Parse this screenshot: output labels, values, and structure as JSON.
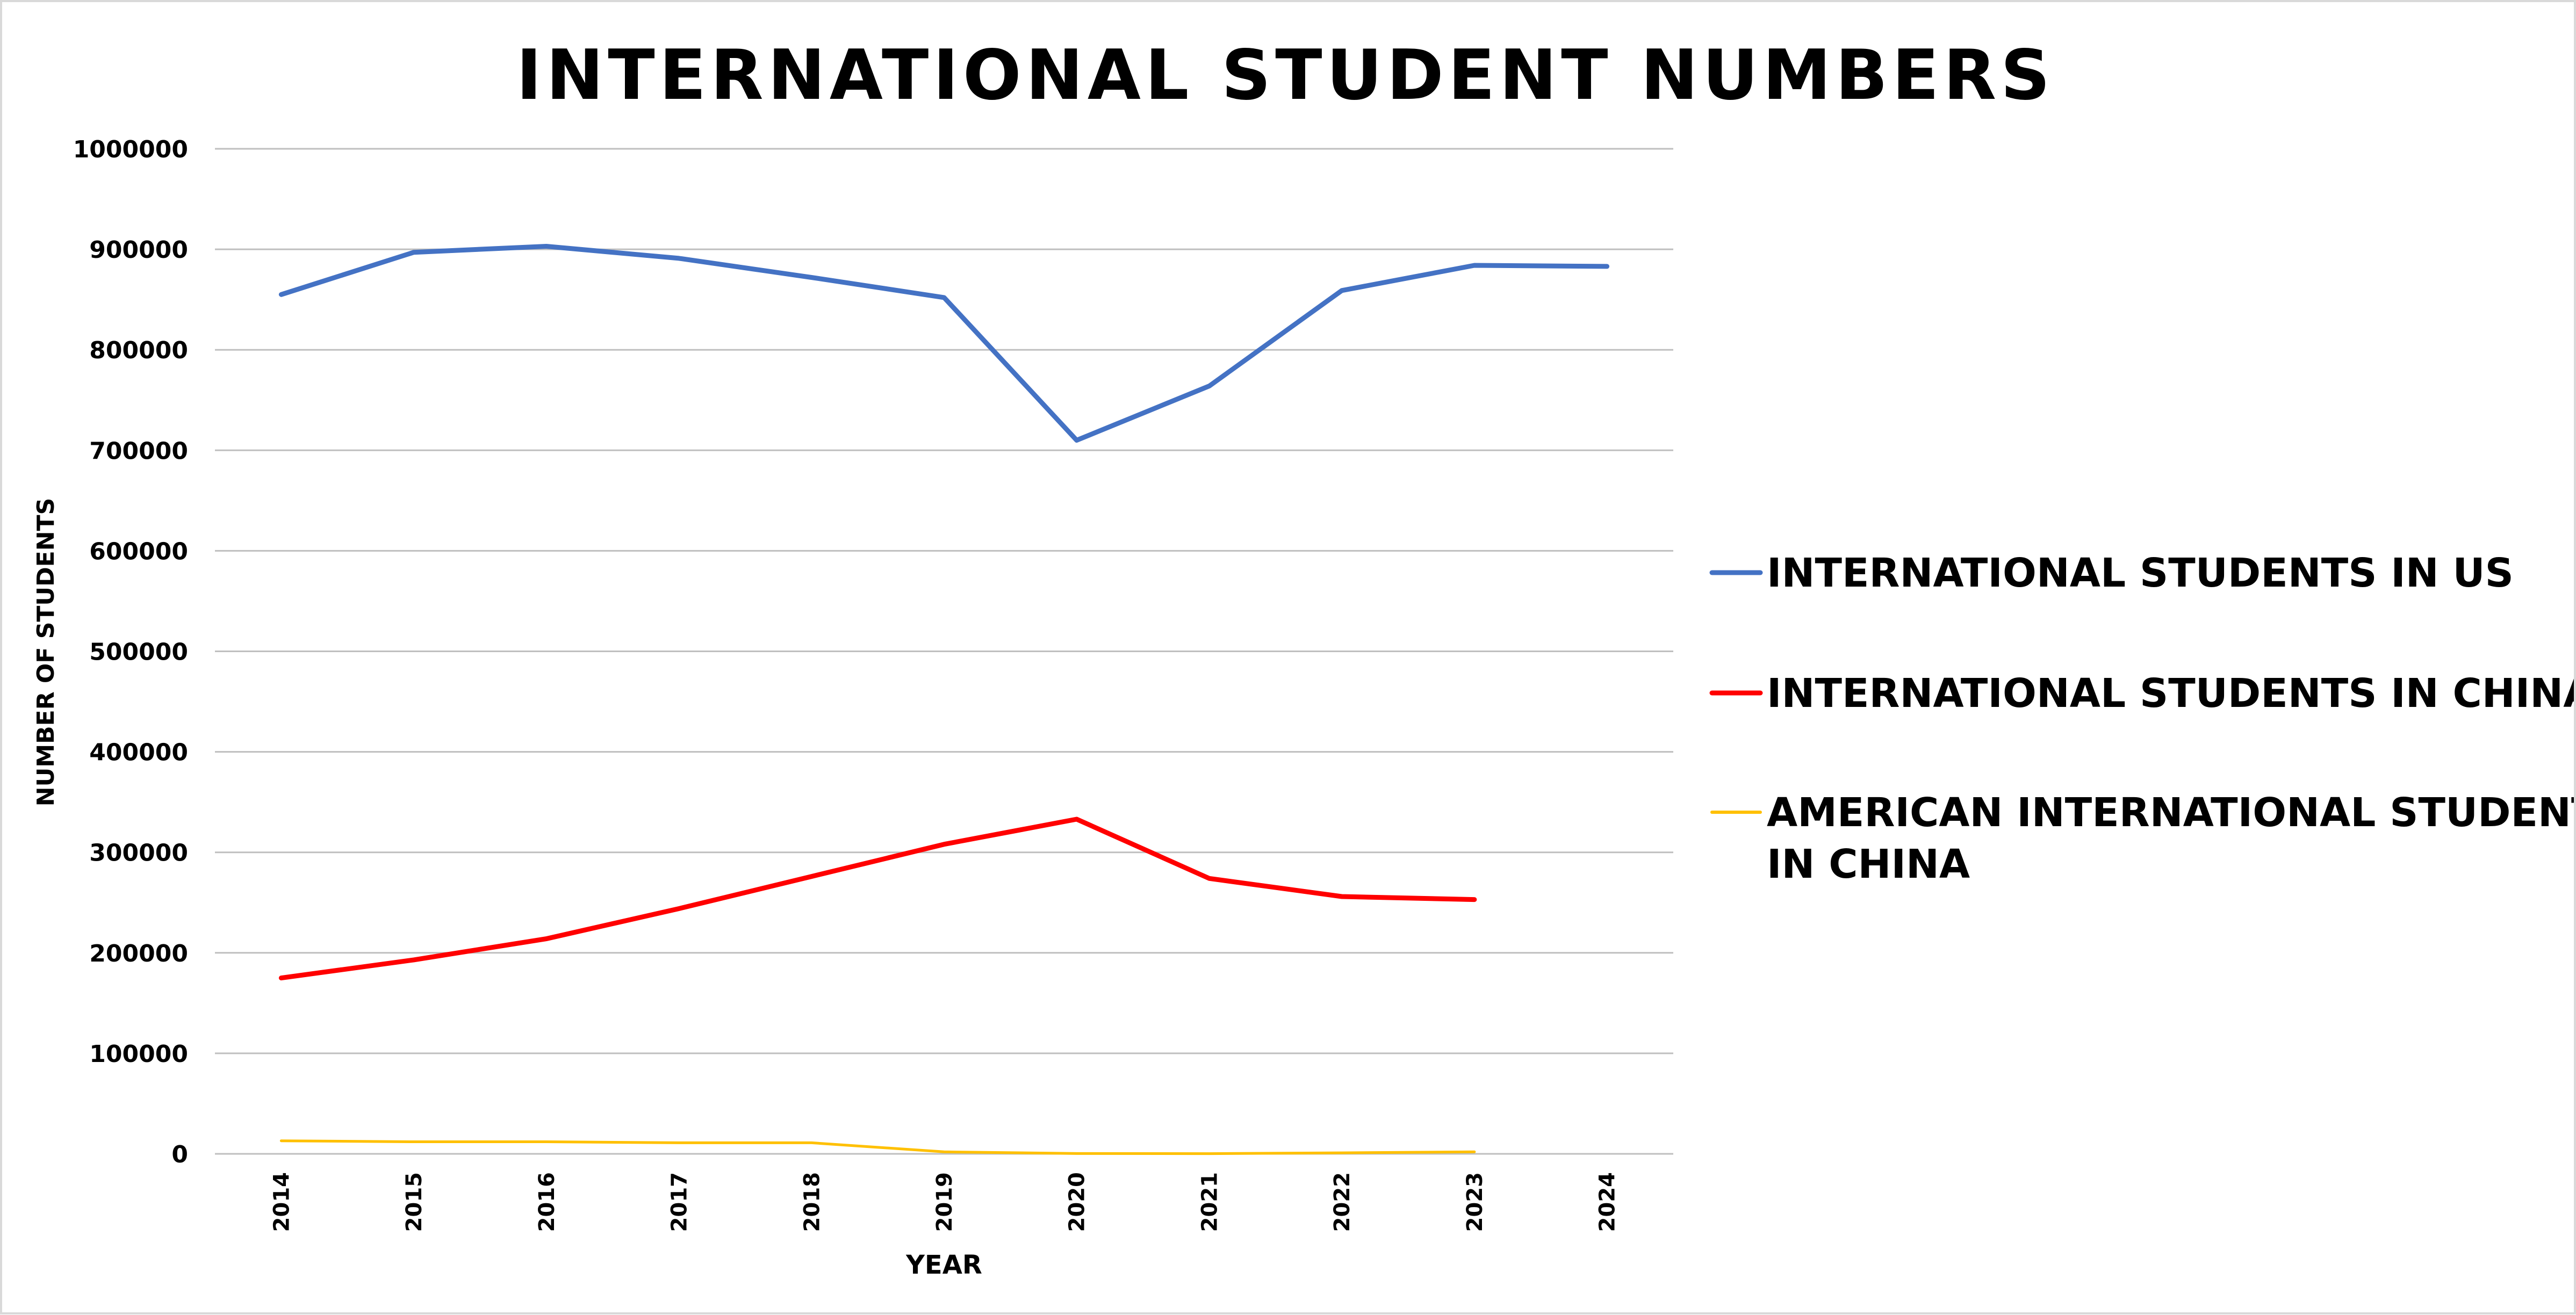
{
  "chart_data": {
    "type": "line",
    "title": "INTERNATIONAL STUDENT NUMBERS",
    "xlabel": "YEAR",
    "ylabel": "NUMBER OF STUDENTS",
    "ylim": [
      0,
      1000000
    ],
    "y_ticks": [
      "0",
      "100000",
      "200000",
      "300000",
      "400000",
      "500000",
      "600000",
      "700000",
      "800000",
      "900000",
      "1000000"
    ],
    "categories": [
      "2014",
      "2015",
      "2016",
      "2017",
      "2018",
      "2019",
      "2020",
      "2021",
      "2022",
      "2023",
      "2024"
    ],
    "grid": true,
    "legend_position": "right",
    "series": [
      {
        "name": "INTERNATIONAL STUDENTS IN US",
        "color": "#4472C4",
        "values": [
          855000,
          897000,
          903000,
          891000,
          872000,
          852000,
          710000,
          764000,
          859000,
          884000,
          883000
        ]
      },
      {
        "name": "INTERNATIONAL STUDENTS IN CHINA",
        "color": "#FF0000",
        "values": [
          175000,
          193000,
          214000,
          244000,
          276000,
          308000,
          333000,
          274000,
          256000,
          253000,
          null
        ]
      },
      {
        "name": "AMERICAN INTERNATIONAL STUDENTS IN CHINA",
        "legend_lines": [
          "AMERICAN INTERNATIONAL STUDENTS",
          "IN CHINA"
        ],
        "color": "#FFC000",
        "values": [
          13000,
          12000,
          12000,
          11000,
          11000,
          2000,
          300,
          200,
          1000,
          2000,
          null
        ]
      }
    ]
  }
}
